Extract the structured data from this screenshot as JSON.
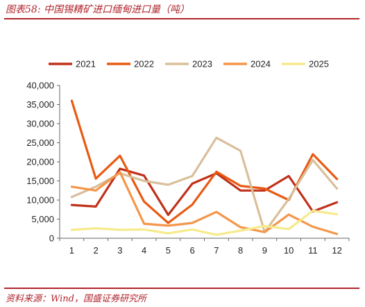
{
  "figure": {
    "title": "图表58:  中国锡精矿进口缅甸进口量（吨）",
    "source": "资料来源：Wind，国盛证券研究所"
  },
  "chart_data": {
    "type": "line",
    "categories": [
      "1",
      "2",
      "3",
      "4",
      "5",
      "6",
      "7",
      "8",
      "9",
      "10",
      "11",
      "12"
    ],
    "ylim": [
      0,
      40000
    ],
    "yticks": [
      "0",
      "5,000",
      "10,000",
      "15,000",
      "20,000",
      "25,000",
      "30,000",
      "35,000",
      "40,000"
    ],
    "legend_position": "top",
    "grid": false,
    "series": [
      {
        "name": "2021",
        "color": "#c0311a",
        "values": [
          8700,
          8300,
          18200,
          16400,
          6100,
          14300,
          17000,
          12500,
          12500,
          16300,
          7000,
          9400
        ]
      },
      {
        "name": "2022",
        "color": "#e85a12",
        "values": [
          36000,
          15600,
          21600,
          9600,
          4000,
          8800,
          17400,
          13700,
          13000,
          10000,
          22000,
          15500
        ]
      },
      {
        "name": "2023",
        "color": "#d9bf9a",
        "values": [
          10800,
          13500,
          17000,
          15000,
          14000,
          16300,
          26300,
          22900,
          1600,
          10300,
          20500,
          13000
        ]
      },
      {
        "name": "2024",
        "color": "#f4964a",
        "values": [
          13500,
          12500,
          17300,
          3800,
          3300,
          4000,
          6900,
          2900,
          1600,
          6200,
          3000,
          1100
        ]
      },
      {
        "name": "2025",
        "color": "#f6ea8a",
        "values": [
          2200,
          2600,
          2200,
          2300,
          1300,
          2300,
          900,
          2000,
          3200,
          2400,
          7200,
          6300
        ]
      }
    ]
  }
}
